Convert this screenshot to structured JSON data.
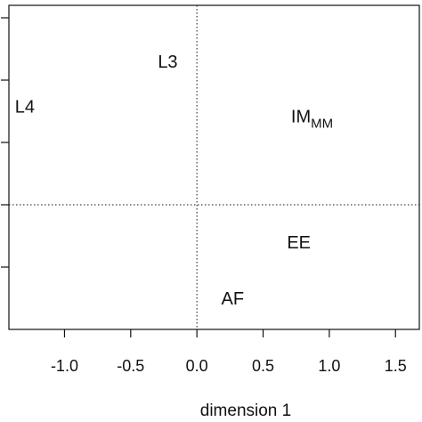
{
  "chart_data": {
    "type": "scatter",
    "xlabel": "dimension 1",
    "ylabel": "",
    "xlim": [
      -1.42,
      1.68
    ],
    "ylim": [
      -1.0,
      1.6
    ],
    "x_ticks": [
      {
        "value": -1.0,
        "label": "-1.0"
      },
      {
        "value": -0.5,
        "label": "-0.5"
      },
      {
        "value": 0.0,
        "label": "0.0"
      },
      {
        "value": 0.5,
        "label": "0.5"
      },
      {
        "value": 1.0,
        "label": "1.0"
      },
      {
        "value": 1.5,
        "label": "1.5"
      }
    ],
    "y_ticks": [
      -0.5,
      0.0,
      0.5,
      1.0,
      1.5
    ],
    "reference_lines": {
      "x": 0.0,
      "y": 0.0,
      "style": "dotted"
    },
    "points": [
      {
        "label": "L3",
        "subscript": "",
        "x": -0.22,
        "y": 1.15
      },
      {
        "label": "L4",
        "subscript": "",
        "x": -1.3,
        "y": 0.79
      },
      {
        "label": "IM",
        "subscript": "MM",
        "x": 0.87,
        "y": 0.71
      },
      {
        "label": "EE",
        "subscript": "",
        "x": 0.77,
        "y": -0.3
      },
      {
        "label": "AF",
        "subscript": "",
        "x": 0.27,
        "y": -0.75
      }
    ],
    "grid": false,
    "legend": "none"
  }
}
